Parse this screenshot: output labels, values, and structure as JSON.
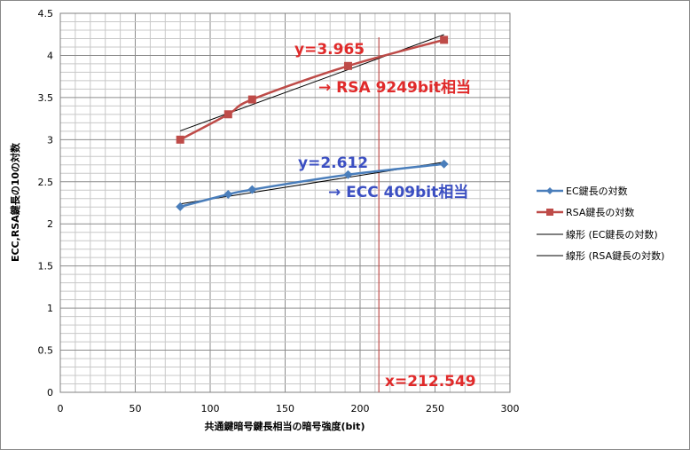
{
  "chart_data": {
    "type": "line",
    "xlabel": "共通鍵暗号鍵長相当の暗号強度(bit)",
    "ylabel": "ECC,RSA鍵長の10の対数",
    "xlim": [
      0,
      300
    ],
    "ylim": [
      0,
      4.5
    ],
    "x_ticks": [
      "0",
      "50",
      "100",
      "150",
      "200",
      "250",
      "300"
    ],
    "y_ticks": [
      "0",
      "0.5",
      "1",
      "1.5",
      "2",
      "2.5",
      "3",
      "3.5",
      "4",
      "4.5"
    ],
    "grid": true,
    "legend_position": "right",
    "series": [
      {
        "name": "EC鍵長の対数",
        "color": "#4a7ebb",
        "marker": "diamond",
        "x": [
          80,
          112,
          128,
          192,
          256
        ],
        "y": [
          2.204,
          2.35,
          2.407,
          2.584,
          2.711
        ]
      },
      {
        "name": "RSA鍵長の対数",
        "color": "#be4b48",
        "marker": "square",
        "x": [
          80,
          112,
          128,
          192,
          256
        ],
        "y": [
          3.0,
          3.301,
          3.477,
          3.875,
          4.185
        ]
      }
    ],
    "trendlines": [
      {
        "name": "線形 (EC鍵長の対数)",
        "color": "#000000",
        "x": [
          80,
          256
        ],
        "y": [
          2.237,
          2.733
        ]
      },
      {
        "name": "線形 (RSA鍵長の対数)",
        "color": "#000000",
        "x": [
          80,
          256
        ],
        "y": [
          3.104,
          4.247
        ]
      }
    ],
    "vertical_line": {
      "x": 212.549,
      "color": "#c0504d"
    },
    "annotations": {
      "rsa_y": "y=3.965",
      "rsa_note": "→ RSA 9249bit相当",
      "ecc_y": "y=2.612",
      "ecc_note": "→ ECC 409bit相当",
      "x_value": "x=212.549"
    }
  }
}
